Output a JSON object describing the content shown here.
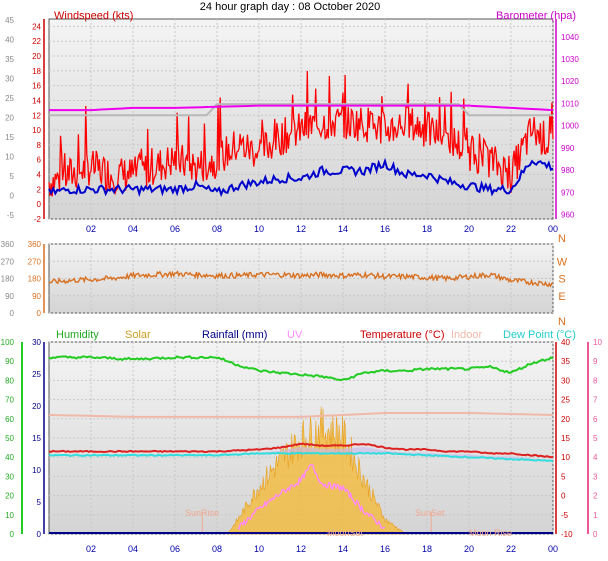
{
  "title": "24 hour graph day : 08 October 2020",
  "colors": {
    "wind": "#ff0000",
    "gust_fill": "#ff2020",
    "avg": "#0000cc",
    "baro": "#ee00ee",
    "baro_axis": "#cc00cc",
    "wind_dir": "#d87020",
    "humidity": "#22cc22",
    "solar": "#f5b830",
    "rain": "#000088",
    "uv": "#ff88ff",
    "temp": "#dd2222",
    "indoor": "#f0b8a8",
    "dew": "#33dddd",
    "uv_axis": "#ee5599",
    "tick_blue": "#0000aa"
  },
  "x_ticks": [
    "02",
    "04",
    "06",
    "08",
    "10",
    "12",
    "14",
    "16",
    "18",
    "20",
    "22",
    "00"
  ],
  "panel1": {
    "left_label": "Windspeed (kts)",
    "right_label": "Barometer (hpa)",
    "left_ticks": [
      "-2",
      "0",
      "2",
      "4",
      "6",
      "8",
      "10",
      "12",
      "14",
      "16",
      "18",
      "20",
      "22",
      "24"
    ],
    "right_ticks": [
      "960",
      "970",
      "980",
      "990",
      "1000",
      "1010",
      "1020",
      "1030",
      "1040"
    ],
    "outer_ticks": [
      "-5",
      "0",
      "5",
      "10",
      "15",
      "20",
      "25",
      "30",
      "35",
      "40",
      "45"
    ]
  },
  "panel2": {
    "left_ticks": [
      "0",
      "90",
      "180",
      "270",
      "360"
    ],
    "right_ticks": [
      "N",
      "E",
      "S",
      "W",
      "N"
    ],
    "outer_ticks": [
      "0",
      "90",
      "180",
      "270",
      "360"
    ]
  },
  "panel3": {
    "legend": {
      "humidity": "Humidity",
      "solar": "Solar",
      "rainfall": "Rainfall (mm)",
      "uv": "UV",
      "temperature": "Temperature (°C)",
      "indoor": "Indoor",
      "dewpoint": "Dew Point (°C)"
    },
    "humidity_ticks": [
      "0",
      "10",
      "20",
      "30",
      "40",
      "50",
      "60",
      "70",
      "80",
      "90",
      "100"
    ],
    "rain_ticks": [
      "0",
      "5",
      "10",
      "15",
      "20",
      "25",
      "30"
    ],
    "temp_ticks": [
      "-10",
      "-5",
      "0",
      "5",
      "10",
      "15",
      "20",
      "25",
      "30",
      "35",
      "40"
    ],
    "uv_ticks": [
      "0",
      "1",
      "2",
      "3",
      "4",
      "5",
      "6",
      "7",
      "8",
      "9",
      "10"
    ],
    "annotations": {
      "sunrise": "SunRise",
      "sunset": "SunSet",
      "moonrise": "Moon Rise",
      "moonset": "MoonSet"
    }
  },
  "chart_data": [
    {
      "type": "line",
      "x_unit": "hour of day",
      "xlim": [
        0,
        24
      ],
      "ylim_left": [
        -2,
        25
      ],
      "ylim_right": [
        958,
        1048
      ],
      "series": [
        {
          "name": "Windspeed (kts)",
          "axis": "left",
          "x": [
            0,
            1,
            2,
            3,
            4,
            5,
            6,
            7,
            8,
            9,
            10,
            11,
            12,
            13,
            14,
            15,
            16,
            17,
            18,
            19,
            20,
            21,
            22,
            23,
            24
          ],
          "values": [
            3,
            4,
            5,
            4,
            4,
            5,
            6,
            5,
            6,
            8,
            7,
            9,
            10,
            11,
            11,
            11,
            10,
            11,
            10,
            9,
            7,
            6,
            4,
            10,
            8
          ]
        },
        {
          "name": "Average wind (kts)",
          "axis": "left",
          "x": [
            0,
            1,
            2,
            3,
            4,
            5,
            6,
            7,
            8,
            9,
            10,
            11,
            12,
            13,
            14,
            15,
            16,
            17,
            18,
            19,
            20,
            21,
            22,
            23,
            24
          ],
          "values": [
            1.5,
            2,
            2,
            2,
            2,
            2,
            2,
            2.5,
            1.5,
            2.5,
            3,
            3.5,
            3.5,
            4.5,
            4.5,
            4.5,
            5.5,
            4,
            4,
            3,
            2.5,
            2,
            2,
            6,
            5
          ]
        },
        {
          "name": "Barometer (hpa)",
          "axis": "right",
          "x": [
            0,
            2,
            4,
            6,
            8,
            10,
            12,
            14,
            16,
            18,
            20,
            22,
            24
          ],
          "values": [
            1007,
            1007,
            1008,
            1008,
            1008.5,
            1009,
            1009,
            1009,
            1009,
            1009,
            1009,
            1008,
            1007
          ]
        }
      ]
    },
    {
      "type": "line",
      "x_unit": "hour of day",
      "xlim": [
        0,
        24
      ],
      "ylim": [
        0,
        360
      ],
      "series": [
        {
          "name": "Wind direction (°)",
          "x": [
            0,
            1,
            2,
            3,
            4,
            5,
            6,
            7,
            8,
            9,
            10,
            11,
            12,
            13,
            14,
            15,
            16,
            17,
            18,
            19,
            20,
            21,
            22,
            23,
            24
          ],
          "values": [
            160,
            170,
            175,
            180,
            195,
            200,
            205,
            200,
            195,
            195,
            200,
            200,
            195,
            200,
            195,
            200,
            190,
            190,
            185,
            180,
            190,
            200,
            170,
            160,
            150
          ]
        }
      ]
    },
    {
      "type": "line",
      "x_unit": "hour of day",
      "xlim": [
        0,
        24
      ],
      "ylim_temp": [
        -10,
        40
      ],
      "ylim_humidity": [
        0,
        100
      ],
      "series": [
        {
          "name": "Humidity",
          "axis": "humidity",
          "x": [
            0,
            2,
            4,
            6,
            8,
            9,
            10,
            11,
            12,
            13,
            14,
            15,
            16,
            17,
            18,
            19,
            20,
            21,
            22,
            23,
            24
          ],
          "values": [
            92,
            92,
            91,
            92,
            92,
            88,
            85,
            84,
            83,
            82,
            80,
            84,
            85,
            85,
            86,
            86,
            86,
            87,
            84,
            89,
            92
          ]
        },
        {
          "name": "Temperature (°C)",
          "axis": "temp",
          "x": [
            0,
            2,
            4,
            6,
            8,
            10,
            11,
            12,
            13,
            14,
            15,
            16,
            17,
            18,
            19,
            20,
            21,
            22,
            23,
            24
          ],
          "values": [
            11.5,
            11.5,
            11.5,
            11.5,
            11.5,
            12,
            12.5,
            13.5,
            13,
            13,
            13.5,
            12.5,
            12,
            12,
            11.5,
            11.5,
            11,
            11,
            10.5,
            10
          ]
        },
        {
          "name": "Dew Point (°C)",
          "axis": "temp",
          "x": [
            0,
            2,
            4,
            6,
            8,
            10,
            12,
            14,
            16,
            18,
            20,
            22,
            24
          ],
          "values": [
            10.5,
            10.5,
            10.5,
            10.5,
            10.5,
            11,
            11,
            11,
            11,
            10.5,
            10,
            9.5,
            9
          ]
        },
        {
          "name": "Indoor",
          "axis": "temp",
          "x": [
            0,
            4,
            8,
            12,
            16,
            20,
            24
          ],
          "values": [
            21,
            20.5,
            20.5,
            20.5,
            21.5,
            21.5,
            21
          ]
        },
        {
          "name": "UV",
          "axis": "uv",
          "x": [
            9,
            10,
            11,
            12,
            12.5,
            13,
            14,
            15,
            16
          ],
          "values": [
            0.3,
            1.3,
            2.1,
            2.8,
            3.6,
            2.6,
            2.4,
            1.2,
            0.3
          ]
        },
        {
          "name": "Solar",
          "axis": "uv",
          "x": [
            8.5,
            9,
            10,
            11,
            12,
            13,
            14,
            15,
            16,
            17
          ],
          "values": [
            0,
            0.8,
            2.6,
            4,
            5.2,
            5.8,
            5.4,
            3,
            0.8,
            0
          ]
        },
        {
          "name": "Rainfall (mm)",
          "axis": "rain",
          "x": [
            0,
            24
          ],
          "values": [
            0,
            0
          ]
        }
      ]
    }
  ]
}
